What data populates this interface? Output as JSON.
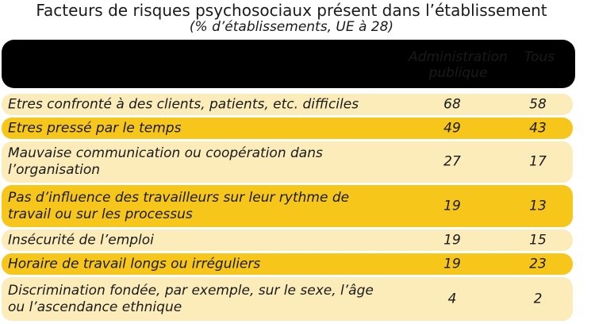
{
  "title": "Facteurs de risques psychosociaux présent dans l’établissement",
  "subtitle": "(% d’établissements, UE à 28)",
  "colors": {
    "header": "#000000",
    "row_light": "#fbecb9",
    "row_dark": "#f7c61b"
  },
  "chart_data": {
    "type": "table",
    "title": "Facteurs de risques psychosociaux présent dans l’établissement",
    "subtitle": "(% d’établissements, UE à 28)",
    "columns": [
      "Administration publique",
      "Tous"
    ],
    "rows": [
      {
        "label": "Etres confronté à des clients, patients, etc. difficiles",
        "values": [
          68,
          58
        ]
      },
      {
        "label": "Etres pressé par le temps",
        "values": [
          49,
          43
        ]
      },
      {
        "label": "Mauvaise communication ou coopération dans l’organisation",
        "values": [
          27,
          17
        ]
      },
      {
        "label": "Pas d’influence des travailleurs sur leur rythme de travail ou sur les processus",
        "values": [
          19,
          13
        ]
      },
      {
        "label": "Insécurité de l’emploi",
        "values": [
          19,
          15
        ]
      },
      {
        "label": "Horaire de travail longs ou irréguliers",
        "values": [
          19,
          23
        ]
      },
      {
        "label": "Discrimination fondée, par exemple, sur le sexe, l’âge ou l’ascendance ethnique",
        "values": [
          4,
          2
        ]
      }
    ]
  }
}
